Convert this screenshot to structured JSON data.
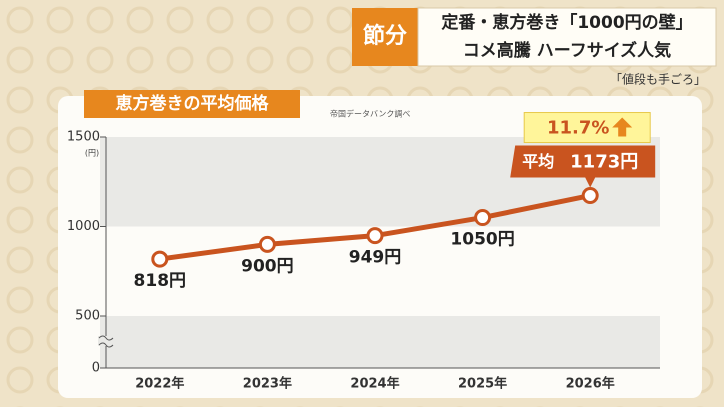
{
  "header": {
    "tag": "節分",
    "line1": "定番・恵方巻き「1000円の壁」",
    "line2": "コメ高騰 ハーフサイズ人気",
    "sub": "「値段も手ごろ」"
  },
  "chart_data": {
    "type": "line",
    "title": "恵方巻きの平均価格",
    "source": "帝国データバンク調べ",
    "y_unit": "(円)",
    "categories": [
      "2022年",
      "2023年",
      "2024年",
      "2025年",
      "2026年"
    ],
    "values": [
      818,
      900,
      949,
      1050,
      1173
    ],
    "value_labels": [
      "818円",
      "900円",
      "949円",
      "1050円",
      "1173円"
    ],
    "highlight_prefix": "平均",
    "change": {
      "value": 11.7,
      "label": "11.7%"
    },
    "color": "#c9541f",
    "ylim": [
      0,
      1500
    ],
    "yticks": [
      0,
      500,
      1000,
      1500
    ],
    "axis_break": true,
    "grid": true
  }
}
